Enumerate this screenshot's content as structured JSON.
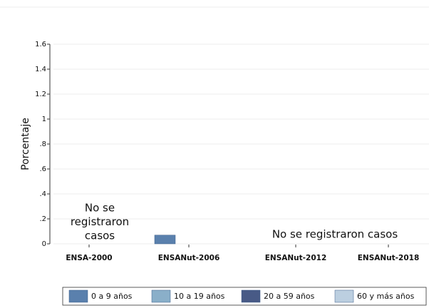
{
  "chart_data": {
    "type": "bar",
    "y_label": "Porcentaje",
    "categories": [
      "ENSA-2000",
      "ENSANut-2006",
      "ENSANut-2012",
      "ENSANut-2018"
    ],
    "series": [
      {
        "name": "0 a 9 años",
        "color": "#5a80ad",
        "values": [
          null,
          0.07,
          null,
          null
        ]
      },
      {
        "name": "10 a 19 años",
        "color": "#8aafc9",
        "values": [
          null,
          0,
          null,
          null
        ]
      },
      {
        "name": "20 a 59 años",
        "color": "#485a86",
        "values": [
          null,
          0,
          null,
          null
        ]
      },
      {
        "name": "60 y más años",
        "color": "#bccfe0",
        "values": [
          null,
          0,
          null,
          null
        ]
      }
    ],
    "annotations": [
      [
        "No se",
        "registraron",
        "casos"
      ],
      [
        "No se registraron casos"
      ]
    ],
    "ylim": [
      0,
      1.6
    ],
    "yticks": [
      0,
      {
        "value": 0.2,
        "label": ".2"
      },
      {
        "value": 0.4,
        "label": ".4"
      },
      {
        "value": 0.6,
        "label": ".6"
      },
      {
        "value": 0.8,
        "label": ".8"
      },
      1,
      1.2,
      1.4,
      1.6
    ],
    "grid": true,
    "legend": "bottom"
  }
}
